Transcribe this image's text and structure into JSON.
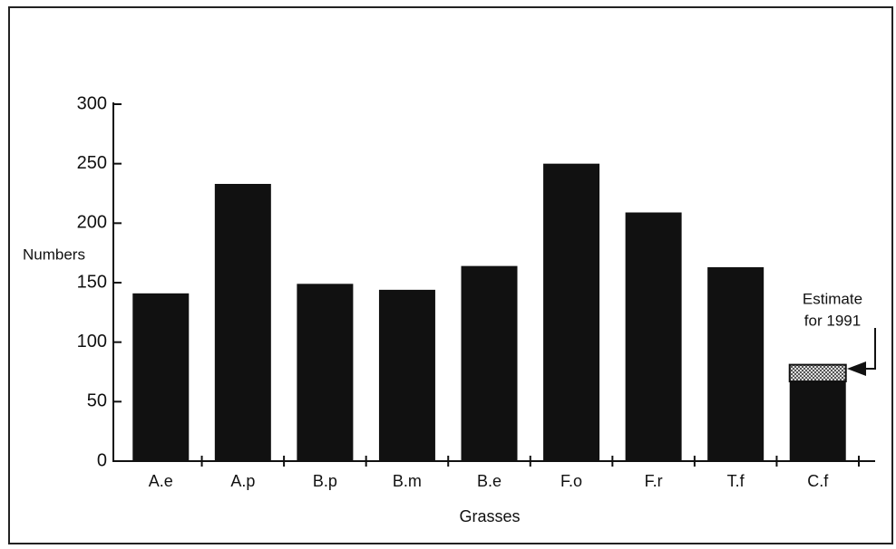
{
  "chart_data": {
    "type": "bar",
    "y_label": "Numbers",
    "x_label": "Grasses",
    "categories": [
      "A.e",
      "A.p",
      "B.p",
      "B.m",
      "B.e",
      "F.o",
      "F.r",
      "T.f",
      "C.f"
    ],
    "values": [
      141,
      233,
      149,
      144,
      164,
      250,
      209,
      163,
      67
    ],
    "color": "#111111",
    "estimate": {
      "lines": [
        "Estimate",
        "for 1991"
      ],
      "values": [
        null,
        null,
        null,
        null,
        null,
        null,
        null,
        null,
        14
      ],
      "color": "#9a9a9a"
    },
    "ylim": [
      0,
      300
    ],
    "yticks": [
      0,
      50,
      100,
      150,
      200,
      250,
      300
    ]
  }
}
